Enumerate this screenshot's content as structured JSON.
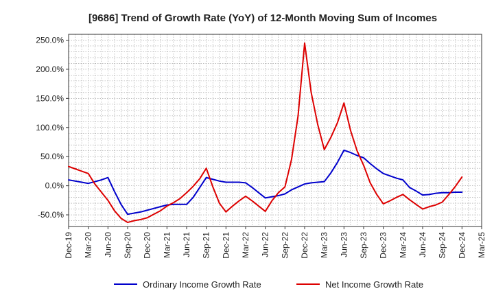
{
  "chart_data": {
    "type": "line",
    "title": "[9686]  Trend of Growth Rate (YoY) of 12-Month Moving Sum of Incomes",
    "xlabel": "",
    "ylabel": "",
    "ylim": [
      -70,
      260
    ],
    "y_ticks": [
      -50,
      0,
      50,
      100,
      150,
      200,
      250
    ],
    "y_tick_labels": [
      "-50.0%",
      "0.0%",
      "50.0%",
      "100.0%",
      "150.0%",
      "200.0%",
      "250.0%"
    ],
    "x_tick_labels": [
      "Dec-19",
      "Mar-20",
      "Jun-20",
      "Sep-20",
      "Dec-20",
      "Mar-21",
      "Jun-21",
      "Sep-21",
      "Dec-21",
      "Mar-22",
      "Jun-22",
      "Sep-22",
      "Dec-22",
      "Mar-23",
      "Jun-23",
      "Sep-23",
      "Dec-23",
      "Mar-24",
      "Jun-24",
      "Sep-24",
      "Dec-24",
      "Mar-25"
    ],
    "x": [
      "Dec-19",
      "Jan-20",
      "Feb-20",
      "Mar-20",
      "Apr-20",
      "May-20",
      "Jun-20",
      "Jul-20",
      "Aug-20",
      "Sep-20",
      "Oct-20",
      "Nov-20",
      "Dec-20",
      "Jan-21",
      "Feb-21",
      "Mar-21",
      "Apr-21",
      "May-21",
      "Jun-21",
      "Jul-21",
      "Aug-21",
      "Sep-21",
      "Oct-21",
      "Nov-21",
      "Dec-21",
      "Jan-22",
      "Feb-22",
      "Mar-22",
      "Apr-22",
      "May-22",
      "Jun-22",
      "Jul-22",
      "Aug-22",
      "Sep-22",
      "Oct-22",
      "Nov-22",
      "Dec-22",
      "Jan-23",
      "Feb-23",
      "Mar-23",
      "Apr-23",
      "May-23",
      "Jun-23",
      "Jul-23",
      "Aug-23",
      "Sep-23",
      "Oct-23",
      "Nov-23",
      "Dec-23",
      "Jan-24",
      "Feb-24",
      "Mar-24",
      "Apr-24",
      "May-24",
      "Jun-24",
      "Jul-24",
      "Aug-24",
      "Sep-24",
      "Oct-24",
      "Nov-24",
      "Dec-24",
      "Jan-25",
      "Feb-25",
      "Mar-25"
    ],
    "grid": true,
    "legend": "bottom",
    "series": [
      {
        "name": "Ordinary Income Growth Rate",
        "color": "#0000cc",
        "values": [
          10,
          8,
          6,
          4,
          7,
          10,
          14,
          -10,
          -32,
          -49,
          -47,
          -45,
          -42,
          -39,
          -36,
          -33,
          -32,
          -32,
          -32,
          -20,
          -3,
          14,
          11,
          8,
          6,
          6,
          6,
          5,
          -3,
          -12,
          -21,
          -19,
          -17,
          -14,
          -7,
          -2,
          3,
          5,
          6,
          7,
          22,
          40,
          61,
          57,
          52,
          48,
          38,
          29,
          21,
          17,
          13,
          10,
          -3,
          -9,
          -16,
          -15,
          -13,
          -12,
          -12,
          -11,
          -11,
          null,
          null,
          null
        ]
      },
      {
        "name": "Net Income Growth Rate",
        "color": "#dd0000",
        "values": [
          33,
          29,
          25,
          21,
          3,
          -11,
          -25,
          -43,
          -56,
          -63,
          -60,
          -58,
          -55,
          -49,
          -43,
          -35,
          -29,
          -22,
          -12,
          -1,
          12,
          30,
          -2,
          -30,
          -45,
          -35,
          -26,
          -18,
          -26,
          -35,
          -44,
          -26,
          -12,
          -2,
          45,
          120,
          245,
          160,
          105,
          62,
          83,
          108,
          142,
          95,
          60,
          35,
          5,
          -15,
          -31,
          -26,
          -20,
          -15,
          -24,
          -32,
          -40,
          -36,
          -33,
          -28,
          -15,
          -1,
          15,
          null,
          null,
          null
        ]
      }
    ]
  }
}
